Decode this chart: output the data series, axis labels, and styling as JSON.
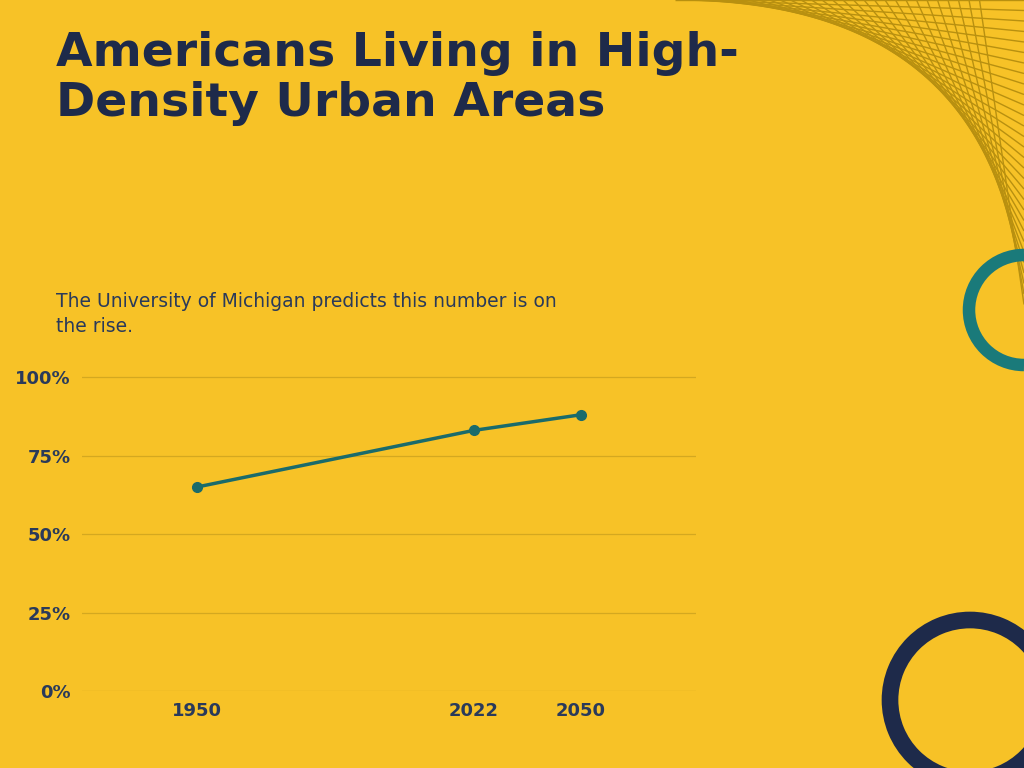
{
  "title": "Americans Living in High-\nDensity Urban Areas",
  "subtitle": "The University of Michigan predicts this number is on\nthe rise.",
  "background_color": "#F7C227",
  "title_color": "#1E2A4A",
  "subtitle_color": "#2A3A5A",
  "line_color": "#1A6B6B",
  "grid_color": "#D4A820",
  "tick_color": "#2A3A5A",
  "stripe_color": "#B89010",
  "x_values": [
    1950,
    2022,
    2050
  ],
  "y_values": [
    65,
    83,
    88
  ],
  "yticks": [
    0,
    25,
    50,
    75,
    100
  ],
  "ytick_labels": [
    "0%",
    "25%",
    "50%",
    "75%",
    "100%"
  ],
  "xtick_labels": [
    "1950",
    "2022",
    "2050"
  ],
  "marker_color": "#1A6B6B",
  "marker_size": 7,
  "line_width": 2.5,
  "teal_circle_color": "#1A7A7A",
  "navy_circle_color": "#1E2A4A"
}
